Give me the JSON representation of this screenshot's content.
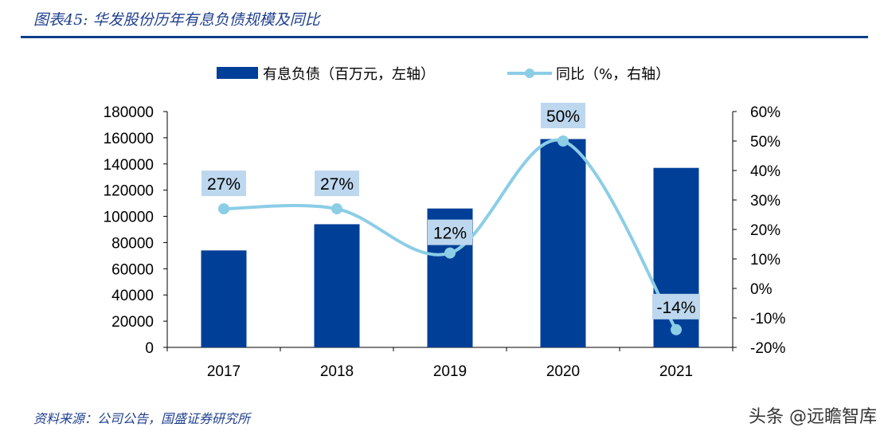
{
  "title": "图表45: 华发股份历年有息负债规模及同比",
  "source": "资料来源：公司公告，国盛证券研究所",
  "watermark": "头条 @远瞻智库",
  "colors": {
    "bar": "#003f98",
    "line": "#8ccde6",
    "label_bg": "#bdd7ee",
    "rule": "#0a3f8c"
  },
  "chart_data": {
    "type": "bar+line",
    "categories": [
      "2017",
      "2018",
      "2019",
      "2020",
      "2021"
    ],
    "series": [
      {
        "name": "有息负债（百万元，左轴）",
        "type": "bar",
        "axis": "left",
        "values": [
          74000,
          94000,
          106000,
          159000,
          137000
        ]
      },
      {
        "name": "同比（%，右轴）",
        "type": "line",
        "axis": "right",
        "smooth": true,
        "values": [
          27,
          27,
          12,
          50,
          -14
        ],
        "data_labels": [
          "27%",
          "27%",
          "12%",
          "50%",
          "-14%"
        ]
      }
    ],
    "left_axis": {
      "range": [
        0,
        180000
      ],
      "ticks": [
        "0",
        "20000",
        "40000",
        "60000",
        "80000",
        "100000",
        "120000",
        "140000",
        "160000",
        "180000"
      ]
    },
    "right_axis": {
      "range": [
        -20,
        60
      ],
      "ticks": [
        "-20%",
        "-10%",
        "0%",
        "10%",
        "20%",
        "30%",
        "40%",
        "50%",
        "60%"
      ]
    },
    "legend": "top",
    "grid": false
  }
}
